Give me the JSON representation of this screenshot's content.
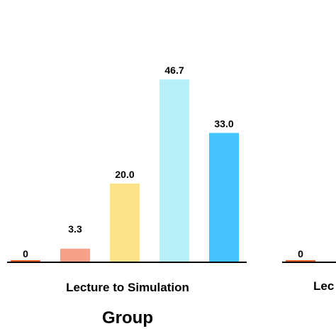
{
  "chart_data": {
    "type": "bar",
    "xlabel": "Group",
    "ylim": [
      0,
      50
    ],
    "groups": [
      {
        "name": "Lecture to Simulation",
        "values": [
          0,
          3.3,
          20.0,
          46.7,
          33.0
        ],
        "labels": [
          "0",
          "3.3",
          "20.0",
          "46.7",
          "33.0"
        ],
        "colors": [
          "#e8622a",
          "#f9a08a",
          "#fce38a",
          "#b8f0fa",
          "#45c3ff"
        ]
      },
      {
        "name": "Lec",
        "values": [
          0
        ],
        "labels": [
          "0"
        ],
        "colors": [
          "#e8622a"
        ]
      }
    ]
  }
}
